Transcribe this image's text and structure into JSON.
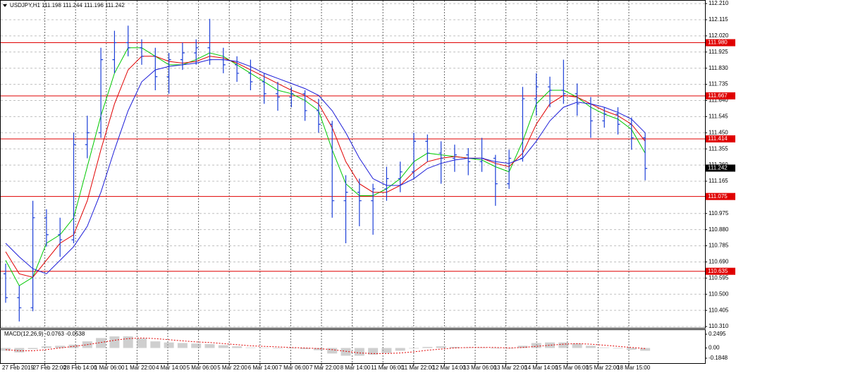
{
  "chart_data": {
    "type": "ohlc",
    "title": "USDJPY,H1  111.198 111.244 111.196 111.242",
    "color": "#1c3fd8",
    "grid": true,
    "ylim": [
      110.302,
      112.227
    ],
    "yticks": [
      {
        "value": 112.21,
        "label": "112.210"
      },
      112.115,
      {
        "value": 112.02,
        "label": "112.020"
      },
      111.925,
      {
        "value": 111.83,
        "label": "111.830"
      },
      111.735,
      {
        "value": 111.64,
        "label": "111.640"
      },
      111.545,
      {
        "value": 111.45,
        "label": "111.450"
      },
      111.355,
      {
        "value": 111.26,
        "label": "111.260"
      },
      111.165,
      {
        "value": 110.975,
        "label": "110.975"
      },
      {
        "value": 110.88,
        "label": "110.880"
      },
      110.785,
      {
        "value": 110.69,
        "label": "110.690"
      },
      110.595,
      {
        "value": 110.5,
        "label": "110.500"
      },
      110.405,
      {
        "value": 110.31,
        "label": "110.310"
      }
    ],
    "x_labels": [
      "27 Feb 2019",
      "27 Feb 22:00",
      "28 Feb 14:00",
      "1 Mar 06:00",
      "1 Mar 22:00",
      "4 Mar 14:00",
      "5 Mar 06:00",
      "5 Mar 22:00",
      "6 Mar 14:00",
      "7 Mar 06:00",
      "7 Mar 22:00",
      "8 Mar 14:00",
      "11 Mar 06:00",
      "11 Mar 22:00",
      "12 Mar 14:00",
      "13 Mar 06:00",
      "13 Mar 22:00",
      "14 Mar 14:00",
      "15 Mar 06:00",
      "15 Mar 22:00",
      "18 Mar 15:00"
    ],
    "open": [
      110.62,
      110.48,
      110.42,
      110.95,
      110.85,
      110.82,
      111.38,
      111.45,
      111.88,
      111.98,
      111.95,
      111.9,
      111.78,
      111.88,
      111.92,
      111.95,
      111.88,
      111.85,
      111.8,
      111.75,
      111.68,
      111.66,
      111.68,
      111.58,
      111.5,
      111.05,
      111.1,
      111.05,
      111.12,
      111.18,
      111.22,
      111.4,
      111.33,
      111.3,
      111.32,
      111.28,
      111.3,
      111.15,
      111.3,
      111.65,
      111.72,
      111.7,
      111.68,
      111.62,
      111.52,
      111.56,
      111.5,
      111.42
    ],
    "high": [
      110.68,
      110.55,
      111.05,
      111.0,
      110.95,
      111.45,
      111.55,
      111.95,
      112.05,
      112.08,
      112.0,
      111.95,
      111.92,
      111.98,
      112.0,
      112.12,
      111.95,
      111.9,
      111.88,
      111.8,
      111.75,
      111.72,
      111.7,
      111.65,
      111.52,
      111.2,
      111.18,
      111.15,
      111.25,
      111.28,
      111.45,
      111.44,
      111.4,
      111.38,
      111.36,
      111.42,
      111.32,
      111.35,
      111.72,
      111.8,
      111.78,
      111.88,
      111.74,
      111.66,
      111.6,
      111.6,
      111.54,
      111.45
    ],
    "low": [
      110.45,
      110.34,
      110.4,
      110.78,
      110.72,
      110.8,
      111.3,
      111.42,
      111.8,
      111.9,
      111.85,
      111.7,
      111.68,
      111.82,
      111.85,
      111.85,
      111.8,
      111.75,
      111.7,
      111.62,
      111.58,
      111.6,
      111.52,
      111.45,
      110.95,
      110.8,
      110.9,
      110.85,
      111.05,
      111.1,
      111.18,
      111.28,
      111.15,
      111.22,
      111.2,
      111.22,
      111.02,
      111.12,
      111.28,
      111.55,
      111.6,
      111.62,
      111.55,
      111.42,
      111.48,
      111.44,
      111.35,
      111.17
    ],
    "close": [
      110.48,
      110.42,
      110.95,
      110.85,
      110.82,
      111.38,
      111.45,
      111.88,
      111.98,
      111.95,
      111.9,
      111.78,
      111.88,
      111.92,
      111.95,
      111.88,
      111.85,
      111.8,
      111.75,
      111.68,
      111.66,
      111.68,
      111.58,
      111.5,
      111.05,
      111.1,
      111.05,
      111.12,
      111.18,
      111.22,
      111.4,
      111.33,
      111.3,
      111.32,
      111.28,
      111.3,
      111.15,
      111.3,
      111.65,
      111.72,
      111.7,
      111.68,
      111.62,
      111.52,
      111.56,
      111.5,
      111.42,
      111.24
    ],
    "series": [
      {
        "color": "#00c800",
        "values": [
          110.7,
          110.55,
          110.6,
          110.8,
          110.85,
          110.95,
          111.25,
          111.55,
          111.8,
          111.95,
          111.95,
          111.9,
          111.85,
          111.85,
          111.88,
          111.92,
          111.9,
          111.85,
          111.8,
          111.75,
          111.7,
          111.68,
          111.64,
          111.58,
          111.35,
          111.15,
          111.08,
          111.08,
          111.12,
          111.18,
          111.28,
          111.33,
          111.32,
          111.31,
          111.3,
          111.29,
          111.25,
          111.22,
          111.4,
          111.62,
          111.7,
          111.7,
          111.66,
          111.6,
          111.56,
          111.53,
          111.47,
          111.33
        ]
      },
      {
        "color": "#e00000",
        "values": [
          110.75,
          110.62,
          110.6,
          110.7,
          110.8,
          110.85,
          111.05,
          111.35,
          111.62,
          111.82,
          111.9,
          111.9,
          111.87,
          111.86,
          111.87,
          111.9,
          111.89,
          111.86,
          111.82,
          111.78,
          111.74,
          111.7,
          111.67,
          111.62,
          111.48,
          111.28,
          111.15,
          111.1,
          111.1,
          111.14,
          111.22,
          111.28,
          111.3,
          111.31,
          111.3,
          111.3,
          111.27,
          111.25,
          111.33,
          111.5,
          111.62,
          111.67,
          111.66,
          111.62,
          111.58,
          111.55,
          111.5,
          111.4
        ]
      },
      {
        "color": "#1c1cd8",
        "values": [
          110.8,
          110.72,
          110.65,
          110.62,
          110.7,
          110.78,
          110.9,
          111.1,
          111.35,
          111.58,
          111.75,
          111.82,
          111.84,
          111.85,
          111.86,
          111.88,
          111.88,
          111.87,
          111.84,
          111.8,
          111.77,
          111.74,
          111.71,
          111.67,
          111.58,
          111.45,
          111.3,
          111.18,
          111.14,
          111.14,
          111.18,
          111.24,
          111.27,
          111.29,
          111.3,
          111.3,
          111.28,
          111.27,
          111.3,
          111.4,
          111.52,
          111.6,
          111.63,
          111.62,
          111.6,
          111.57,
          111.53,
          111.45
        ]
      }
    ],
    "level_color": "#e00000",
    "levels": [
      {
        "value": 111.98,
        "label": "111.980"
      },
      {
        "value": 111.667,
        "label": "111.667"
      },
      {
        "value": 111.414,
        "label": "111.414"
      },
      {
        "value": 111.075,
        "label": "111.075"
      },
      {
        "value": 110.635,
        "label": "110.635"
      }
    ],
    "current": {
      "value": 111.242,
      "label": "111.242"
    },
    "indicator": {
      "type": "macd",
      "title": "MACD(12,26,9) -0.0763 -0.0538",
      "ylim": [
        -0.274,
        0.326
      ],
      "yticks": [
        0.2495,
        {
          "value": 0,
          "label": "0.00"
        },
        -0.1848
      ],
      "hist_color": "#a8a8a8",
      "signal_color": "#e00000",
      "histogram": [
        -0.05,
        -0.08,
        -0.02,
        0.03,
        0.04,
        0.06,
        0.12,
        0.18,
        0.21,
        0.21,
        0.17,
        0.12,
        0.1,
        0.09,
        0.08,
        0.07,
        0.05,
        0.03,
        0.01,
        0.0,
        -0.01,
        -0.01,
        -0.02,
        -0.04,
        -0.1,
        -0.14,
        -0.14,
        -0.12,
        -0.09,
        -0.05,
        -0.01,
        0.02,
        0.03,
        0.02,
        0.01,
        0.01,
        -0.01,
        -0.01,
        0.04,
        0.09,
        0.1,
        0.1,
        0.08,
        0.04,
        0.01,
        -0.01,
        -0.03,
        -0.05
      ],
      "signal": [
        -0.03,
        -0.05,
        -0.05,
        -0.03,
        0.0,
        0.03,
        0.06,
        0.1,
        0.14,
        0.17,
        0.18,
        0.17,
        0.15,
        0.13,
        0.11,
        0.1,
        0.08,
        0.06,
        0.04,
        0.03,
        0.02,
        0.01,
        0.0,
        -0.01,
        -0.03,
        -0.06,
        -0.09,
        -0.1,
        -0.1,
        -0.09,
        -0.07,
        -0.04,
        -0.02,
        0.0,
        0.01,
        0.01,
        0.01,
        0.0,
        0.01,
        0.03,
        0.05,
        0.07,
        0.08,
        0.07,
        0.05,
        0.03,
        0.01,
        -0.01
      ]
    }
  }
}
